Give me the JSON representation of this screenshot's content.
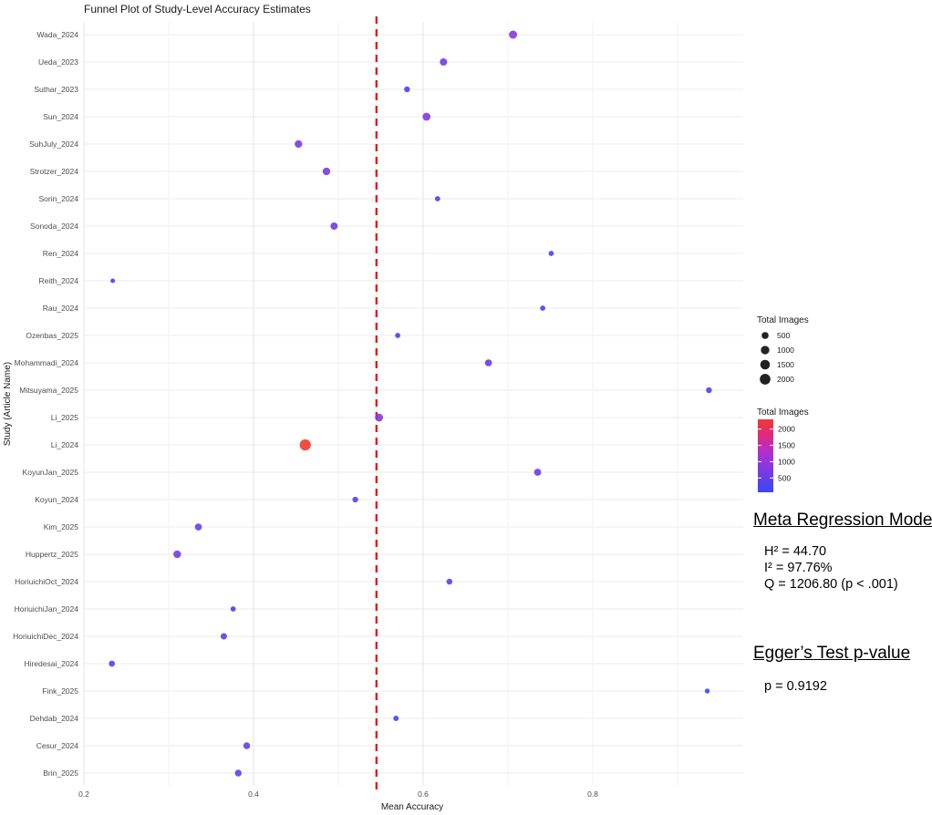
{
  "chart_data": {
    "type": "scatter",
    "title": "Funnel Plot of Study-Level Accuracy Estimates",
    "xlabel": "Mean Accuracy",
    "ylabel": "Study (Article Name)",
    "xlim": [
      0.2,
      0.97
    ],
    "x_ticks": [
      "0.2",
      "0.4",
      "0.6",
      "0.8"
    ],
    "x_tick_values": [
      0.2,
      0.4,
      0.6,
      0.8
    ],
    "grid": true,
    "reference_line": {
      "x": 0.545,
      "style": "dashed",
      "color": "#e41a1c"
    },
    "studies": [
      "Wada_2024",
      "Ueda_2023",
      "Suthar_2023",
      "Sun_2024",
      "SuhJuly_2024",
      "Strotzer_2024",
      "Sorin_2024",
      "Sonoda_2024",
      "Ren_2024",
      "Reith_2024",
      "Rau_2024",
      "Ozenbas_2025",
      "Mohammadi_2024",
      "Mitsuyama_2025",
      "Li_2025",
      "Li_2024",
      "KoyunJan_2025",
      "Koyun_2024",
      "Kim_2025",
      "Huppertz_2025",
      "HoriuichiOct_2024",
      "HoriuichiJan_2024",
      "HoriuichiDec_2024",
      "Hiredesai_2024",
      "Fink_2025",
      "Dehdab_2024",
      "Cesur_2024",
      "Brin_2025"
    ],
    "points": [
      {
        "study": "Wada_2024",
        "x": 0.706,
        "images": 900
      },
      {
        "study": "Ueda_2023",
        "x": 0.624,
        "images": 600
      },
      {
        "study": "Suthar_2023",
        "x": 0.581,
        "images": 250
      },
      {
        "study": "Sun_2024",
        "x": 0.604,
        "images": 800
      },
      {
        "study": "SuhJuly_2024",
        "x": 0.453,
        "images": 680
      },
      {
        "study": "Strotzer_2024",
        "x": 0.486,
        "images": 700
      },
      {
        "study": "Sorin_2024",
        "x": 0.617,
        "images": 150
      },
      {
        "study": "Sonoda_2024",
        "x": 0.495,
        "images": 600
      },
      {
        "study": "Ren_2024",
        "x": 0.751,
        "images": 150
      },
      {
        "study": "Reith_2024",
        "x": 0.234,
        "images": 60
      },
      {
        "study": "Rau_2024",
        "x": 0.741,
        "images": 150
      },
      {
        "study": "Ozenbas_2025",
        "x": 0.57,
        "images": 150
      },
      {
        "study": "Mohammadi_2024",
        "x": 0.677,
        "images": 500
      },
      {
        "study": "Mitsuyama_2025",
        "x": 0.937,
        "images": 250
      },
      {
        "study": "Li_2025",
        "x": 0.548,
        "images": 800
      },
      {
        "study": "Li_2024",
        "x": 0.461,
        "images": 2300
      },
      {
        "study": "KoyunJan_2025",
        "x": 0.735,
        "images": 550
      },
      {
        "study": "Koyun_2024",
        "x": 0.52,
        "images": 220
      },
      {
        "study": "Kim_2025",
        "x": 0.335,
        "images": 500
      },
      {
        "study": "Huppertz_2025",
        "x": 0.31,
        "images": 700
      },
      {
        "study": "HoriuichiOct_2024",
        "x": 0.631,
        "images": 250
      },
      {
        "study": "HoriuichiJan_2024",
        "x": 0.376,
        "images": 150
      },
      {
        "study": "HoriuichiDec_2024",
        "x": 0.365,
        "images": 350
      },
      {
        "study": "Hiredesai_2024",
        "x": 0.233,
        "images": 300
      },
      {
        "study": "Fink_2025",
        "x": 0.935,
        "images": 100
      },
      {
        "study": "Dehdab_2024",
        "x": 0.568,
        "images": 160
      },
      {
        "study": "Cesur_2024",
        "x": 0.392,
        "images": 450
      },
      {
        "study": "Brin_2025",
        "x": 0.382,
        "images": 450
      }
    ],
    "size_legend": {
      "title": "Total Images",
      "values": [
        500,
        1000,
        1500,
        2000
      ],
      "labels": [
        "500",
        "1000",
        "1500",
        "2000"
      ]
    },
    "color_legend": {
      "title": "Total Images",
      "range": [
        60,
        2300
      ],
      "low_color": "#3b47f5",
      "high_color": "#f03a2e",
      "labels": [
        "2000",
        "1500",
        "1000",
        "500"
      ],
      "label_values": [
        2000,
        1500,
        1000,
        500
      ]
    }
  },
  "stats": {
    "meta_title": "Meta Regression Model",
    "h2": "H² = 44.70",
    "i2": "I² = 97.76%",
    "q": "Q = 1206.80 (p < .001)",
    "egger_title": "Egger’s Test p-value",
    "egger_p": "p = 0.9192"
  }
}
